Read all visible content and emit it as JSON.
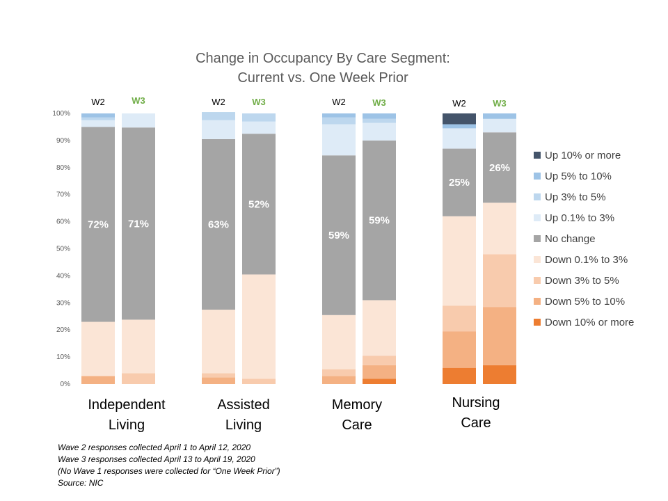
{
  "chart_data": {
    "type": "bar",
    "stacked": true,
    "title_lines": [
      "Change in Occupancy By Care Segment:",
      "Current vs. One Week Prior"
    ],
    "y_ticks": [
      "0%",
      "10%",
      "20%",
      "30%",
      "40%",
      "50%",
      "60%",
      "70%",
      "80%",
      "90%",
      "100%"
    ],
    "ylim": [
      0,
      100
    ],
    "groups": [
      {
        "name": "Independent Living",
        "lines": [
          "Independent",
          "Living"
        ]
      },
      {
        "name": "Assisted Living",
        "lines": [
          "Assisted",
          "Living"
        ]
      },
      {
        "name": "Memory Care",
        "lines": [
          "Memory",
          "Care"
        ]
      },
      {
        "name": "Nursing Care",
        "lines": [
          "Nursing",
          "Care"
        ]
      }
    ],
    "series": [
      {
        "name": "Down 10% or more",
        "color": "#ed7d31"
      },
      {
        "name": "Down 5% to 10%",
        "color": "#f4b183"
      },
      {
        "name": "Down 3% to 5%",
        "color": "#f8cbad"
      },
      {
        "name": "Down 0.1% to 3%",
        "color": "#fbe5d6"
      },
      {
        "name": "No change",
        "color": "#a5a5a5"
      },
      {
        "name": "Up 0.1% to 3%",
        "color": "#deebf7"
      },
      {
        "name": "Up 3% to 5%",
        "color": "#bdd7ee"
      },
      {
        "name": "Up 5% to 10%",
        "color": "#9dc3e6"
      },
      {
        "name": "Up 10% or more",
        "color": "#44546a"
      }
    ],
    "legend_order": [
      "Up 10% or more",
      "Up 5% to 10%",
      "Up 3% to 5%",
      "Up 0.1% to 3%",
      "No change",
      "Down 0.1% to 3%",
      "Down 3% to 5%",
      "Down 5% to 10%",
      "Down 10% or more"
    ],
    "legend_position": "right",
    "bars": [
      {
        "group": "Independent Living",
        "wave": "W2",
        "values": [
          0,
          3,
          0,
          20,
          72,
          2.5,
          1,
          1.5,
          0
        ],
        "label": "72%"
      },
      {
        "group": "Independent Living",
        "wave": "W3",
        "values": [
          0,
          0,
          4,
          19.8,
          71,
          5.2,
          0,
          0,
          0
        ],
        "label": "71%"
      },
      {
        "group": "Assisted Living",
        "wave": "W2",
        "values": [
          0,
          2.5,
          1.5,
          23.5,
          63,
          7,
          3,
          0,
          0
        ],
        "label": "63%"
      },
      {
        "group": "Assisted Living",
        "wave": "W3",
        "values": [
          0,
          0,
          2,
          38.5,
          52,
          4.5,
          3,
          0,
          0
        ],
        "label": "52%"
      },
      {
        "group": "Memory Care",
        "wave": "W2",
        "values": [
          0,
          3,
          2.5,
          20,
          59,
          11.5,
          2.5,
          1.5,
          0
        ],
        "label": "59%"
      },
      {
        "group": "Memory Care",
        "wave": "W3",
        "values": [
          2,
          5,
          3.5,
          20.5,
          59,
          6.5,
          1.5,
          2,
          0
        ],
        "label": "59%"
      },
      {
        "group": "Nursing Care",
        "wave": "W2",
        "values": [
          6,
          13.5,
          9.5,
          33,
          25,
          7.5,
          0,
          1.5,
          4
        ],
        "label": "25%"
      },
      {
        "group": "Nursing Care",
        "wave": "W3",
        "values": [
          7,
          21.5,
          19.5,
          19,
          26,
          5,
          0,
          2,
          0
        ],
        "label": "26%"
      }
    ]
  },
  "notes": [
    "Wave 2 responses collected April 1 to April 12, 2020",
    "Wave 3 responses collected April 13 to April 19, 2020",
    "(No Wave 1 responses were collected for “One Week Prior”)",
    "Source: NIC"
  ]
}
